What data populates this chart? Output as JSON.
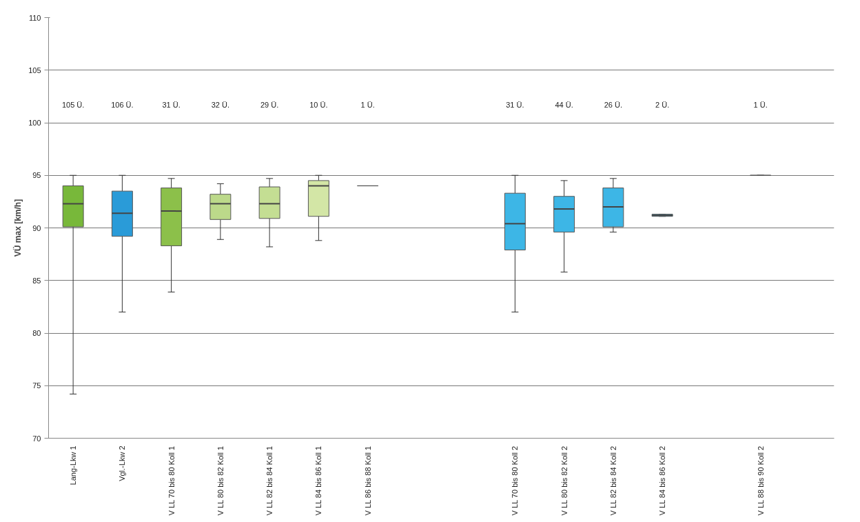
{
  "chart_data": {
    "type": "box",
    "ylabel": "VÜ max [km/h]",
    "categories": [
      "Lang-Lkw 1",
      "Vgl.-Lkw 2",
      "V LL 70 bis 80 Koll 1",
      "V LL 80 bis 82 Koll 1",
      "V LL 82 bis 84 Koll 1",
      "V LL 84 bis 86 Koll 1",
      "V LL 86 bis 88 Koll 1",
      null,
      null,
      "V LL 70 bis 80 Koll 2",
      "V LL 80 bis 82 Koll 2",
      "V LL 82 bis 84 Koll 2",
      "V LL 84 bis 86 Koll 2",
      null,
      "V LL 88 bis 90 Koll 2",
      null
    ],
    "boxes": [
      {
        "low": 74.2,
        "q1": 90.1,
        "median": 92.3,
        "q3": 94,
        "high": 95
      },
      {
        "low": 82,
        "q1": 89.2,
        "median": 91.4,
        "q3": 93.5,
        "high": 95
      },
      {
        "low": 83.9,
        "q1": 88.3,
        "median": 91.6,
        "q3": 93.8,
        "high": 94.7
      },
      {
        "low": 88.9,
        "q1": 90.8,
        "median": 92.3,
        "q3": 93.2,
        "high": 94.2
      },
      {
        "low": 88.2,
        "q1": 90.9,
        "median": 92.3,
        "q3": 93.9,
        "high": 94.7
      },
      {
        "low": 88.8,
        "q1": 91.1,
        "median": 94,
        "q3": 94.5,
        "high": 95
      },
      {
        "low": 94,
        "q1": 94,
        "median": 94,
        "q3": 94,
        "high": 94
      },
      null,
      null,
      {
        "low": 82,
        "q1": 87.9,
        "median": 90.4,
        "q3": 93.3,
        "high": 95
      },
      {
        "low": 85.8,
        "q1": 89.6,
        "median": 91.8,
        "q3": 93,
        "high": 94.5
      },
      {
        "low": 89.6,
        "q1": 90.1,
        "median": 92,
        "q3": 93.8,
        "high": 94.7
      },
      {
        "low": 91.1,
        "q1": 91.1,
        "median": 91.2,
        "q3": 91.3,
        "high": 91.3
      },
      null,
      {
        "low": 95,
        "q1": 95,
        "median": 95,
        "q3": 95,
        "high": 95
      },
      null
    ],
    "colors": [
      "#78b83a",
      "#2a9bd8",
      "#8cc04a",
      "#bcd98a",
      "#c4de93",
      "#d3e6a6",
      "#333333",
      null,
      null,
      "#3db6e6",
      "#3db6e6",
      "#3db6e6",
      "#3db6e6",
      null,
      "#555555",
      null
    ],
    "ylim": [
      70,
      110
    ],
    "yticks": [
      70,
      75,
      80,
      85,
      90,
      95,
      100,
      105,
      110
    ],
    "grid": "y",
    "annotations": [
      "105 Ü.",
      "106 Ü.",
      "31 Ü.",
      "32 Ü.",
      "29 Ü.",
      "10 Ü.",
      "1 Ü.",
      "31 Ü.",
      "44 Ü.",
      "26 Ü.",
      "2 Ü.",
      "1 Ü."
    ]
  }
}
